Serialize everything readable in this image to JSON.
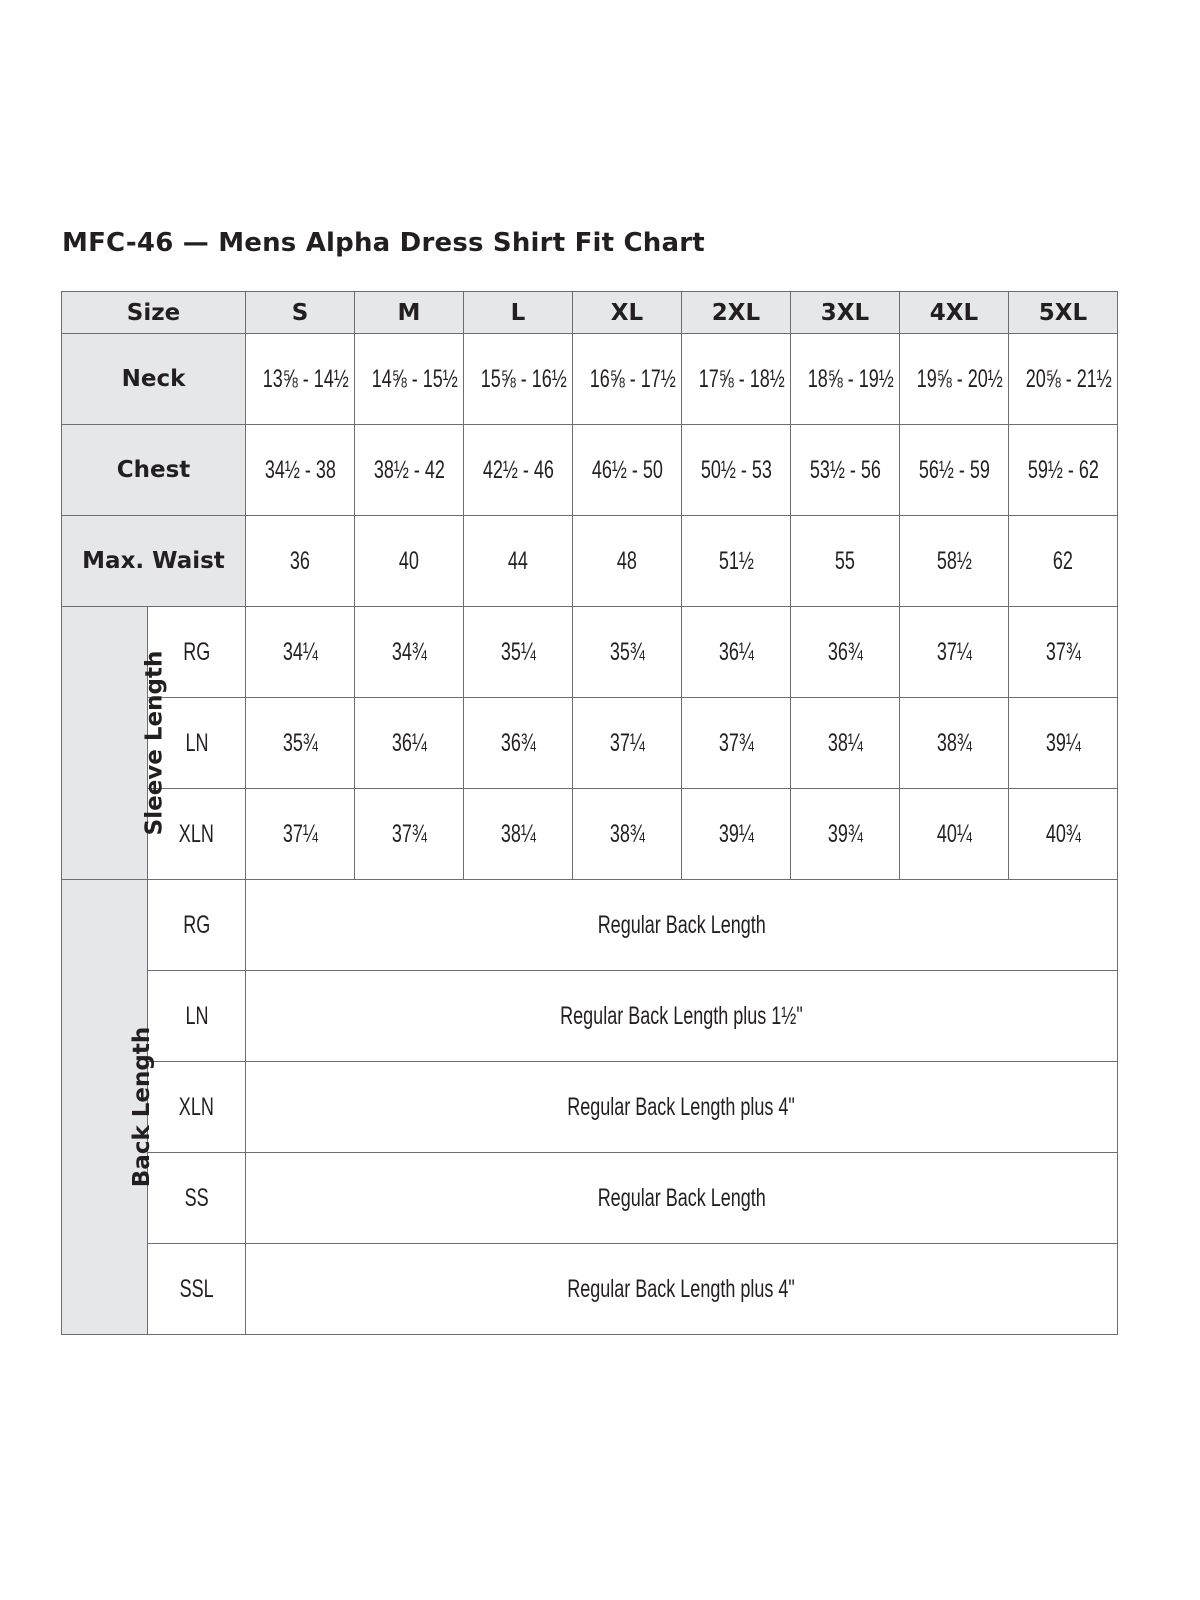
{
  "title": "MFC-46 — Mens Alpha Dress Shirt Fit Chart",
  "header": {
    "label": "Size",
    "sizes": [
      "S",
      "M",
      "L",
      "XL",
      "2XL",
      "3XL",
      "4XL",
      "5XL"
    ]
  },
  "rows": [
    {
      "label": "Neck",
      "values": [
        "13⅝ - 14½",
        "14⅝ - 15½",
        "15⅝ - 16½",
        "16⅝ - 17½",
        "17⅝ - 18½",
        "18⅝ - 19½",
        "19⅝ - 20½",
        "20⅝ - 21½"
      ]
    },
    {
      "label": "Chest",
      "values": [
        "34½ - 38",
        "38½ - 42",
        "42½ - 46",
        "46½ - 50",
        "50½ - 53",
        "53½ - 56",
        "56½ - 59",
        "59½ - 62"
      ]
    },
    {
      "label": "Max. Waist",
      "values": [
        "36",
        "40",
        "44",
        "48",
        "51½",
        "55",
        "58½",
        "62"
      ]
    }
  ],
  "sleeve": {
    "label": "Sleeve Length",
    "rows": [
      {
        "label": "RG",
        "values": [
          "34¼",
          "34¾",
          "35¼",
          "35¾",
          "36¼",
          "36¾",
          "37¼",
          "37¾"
        ]
      },
      {
        "label": "LN",
        "values": [
          "35¾",
          "36¼",
          "36¾",
          "37¼",
          "37¾",
          "38¼",
          "38¾",
          "39¼"
        ]
      },
      {
        "label": "XLN",
        "values": [
          "37¼",
          "37¾",
          "38¼",
          "38¾",
          "39¼",
          "39¾",
          "40¼",
          "40¾"
        ]
      }
    ]
  },
  "back": {
    "label": "Back Length",
    "rows": [
      {
        "label": "RG",
        "value": "Regular Back Length"
      },
      {
        "label": "LN",
        "value": "Regular Back Length plus 1½\""
      },
      {
        "label": "XLN",
        "value": "Regular Back Length plus 4\""
      },
      {
        "label": "SS",
        "value": "Regular Back Length"
      },
      {
        "label": "SSL",
        "value": "Regular Back Length plus 4\""
      }
    ]
  },
  "colors": {
    "header_bg": "#e6e7e8",
    "border": "#6d6e71",
    "text": "#231f20"
  }
}
